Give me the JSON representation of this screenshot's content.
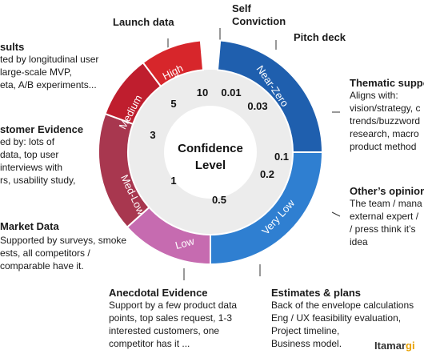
{
  "title_center": [
    "Confidence",
    "Level"
  ],
  "segments": [
    {
      "name": "Near-Zero",
      "color": "#1f5fae"
    },
    {
      "name": "Very Low",
      "color": "#2f7fd1"
    },
    {
      "name": "Low",
      "color": "#c66bb0"
    },
    {
      "name": "Med-Low",
      "color": "#a8374f"
    },
    {
      "name": "Medium",
      "color": "#bf1e2e"
    },
    {
      "name": "High",
      "color": "#d7262b"
    }
  ],
  "values": [
    "10",
    "0.01",
    "0.03",
    "0.1",
    "0.2",
    "0.5",
    "1",
    "3",
    "5"
  ],
  "top_labels": {
    "launch": "Launch data",
    "self": [
      "Self",
      "Conviction"
    ],
    "pitch": "Pitch deck"
  },
  "left": {
    "results": {
      "heading": "sults",
      "lines": [
        "ted by longitudinal user",
        "large-scale MVP,",
        "eta, A/B experiments..."
      ]
    },
    "customer": {
      "heading": "stomer Evidence",
      "lines": [
        "ed by: lots of",
        "data, top user",
        "interviews with",
        "rs, usability study,"
      ]
    },
    "market": {
      "heading": "Market Data",
      "lines": [
        "Supported by surveys, smoke",
        "ests, all competitors /",
        "comparable have it."
      ]
    }
  },
  "right": {
    "thematic": {
      "heading": "Thematic suppo",
      "lines": [
        "Aligns with:",
        "vision/strategy, c",
        "trends/buzzword",
        "research, macro",
        "product method"
      ]
    },
    "others": {
      "heading": "Other’s opinion",
      "lines": [
        "The team / mana",
        "external expert /",
        "/ press think it’s",
        "idea"
      ]
    }
  },
  "bottom": {
    "anecdotal": {
      "heading": "Anecdotal Evidence",
      "lines": [
        "Support by a few product data",
        "points, top sales request, 1-3",
        "interested customers, one",
        "competitor has it ..."
      ]
    },
    "estimates": {
      "heading": "Estimates & plans",
      "lines": [
        "Back of the envelope calculations",
        "Eng / UX feasibility evaluation,",
        "Project timeline,",
        "Business model."
      ]
    }
  },
  "watermark": "Itamargi"
}
